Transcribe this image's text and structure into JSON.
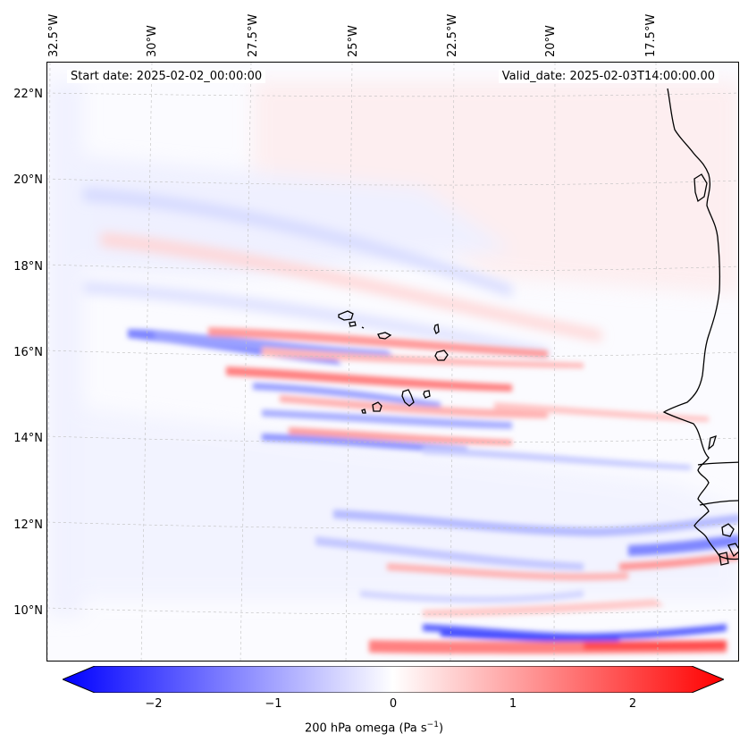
{
  "map": {
    "start_date": "Start date: 2025-02-02_00:00:00",
    "valid_date": "Valid_date: 2025-02-03T14:00:00.00",
    "lon_labels": [
      "32.5°W",
      "30°W",
      "27.5°W",
      "25°W",
      "22.5°W",
      "20°W",
      "17.5°W"
    ],
    "lat_labels": [
      "22°N",
      "20°N",
      "18°N",
      "16°N",
      "14°N",
      "12°N",
      "10°N"
    ]
  },
  "colorbar": {
    "ticks": [
      "−2",
      "−1",
      "0",
      "1",
      "2"
    ],
    "label_prefix": "200 hPa omega (Pa s",
    "label_exponent": "−1",
    "label_suffix": ")",
    "min": -2.7,
    "max": 2.7,
    "neg_color": "#0000ff",
    "zero_color": "#ffffff",
    "pos_color": "#ff0000"
  }
}
